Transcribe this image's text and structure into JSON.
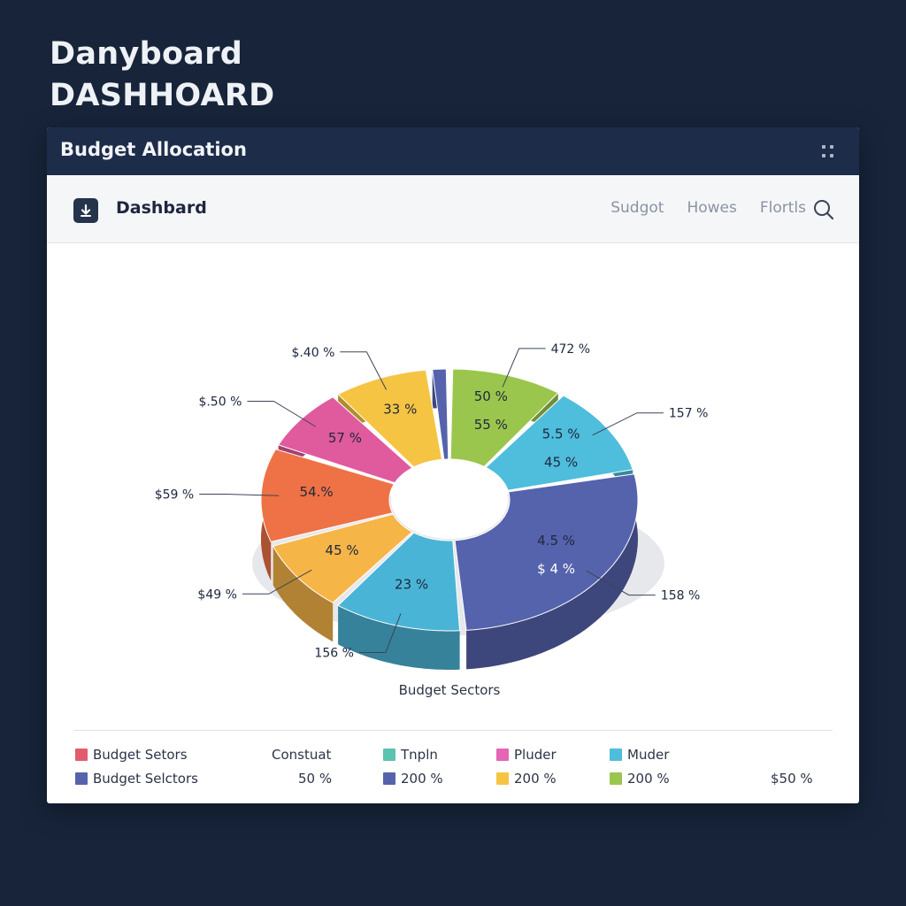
{
  "page": {
    "title_line1": "Danyboard",
    "title_line2": "DASHHOARD"
  },
  "card": {
    "title": "Budget Allocation"
  },
  "toolbar": {
    "title": "Dashbard",
    "nav": [
      "Sudgot",
      "Howes",
      "Flortls"
    ]
  },
  "legend": {
    "row1": [
      {
        "label": "Budget Setors",
        "color": "#e25c6f"
      },
      {
        "label": "Constuat",
        "color": null
      },
      {
        "label": "Tnpln",
        "color": "#5cc3b0"
      },
      {
        "label": "Pluder",
        "color": "#e466b4"
      },
      {
        "label": "Muder",
        "color": "#4fbddc"
      }
    ],
    "row2": [
      {
        "label": "Budget Selctors",
        "color": "#5563ac"
      },
      {
        "label": "50 %",
        "color": null
      },
      {
        "label": "200 %",
        "color": "#5563ac"
      },
      {
        "label": "200 %",
        "color": "#f5c443"
      },
      {
        "label": "200 %",
        "color": "#9bc64d"
      },
      {
        "label": "$50 %",
        "color": null
      }
    ]
  },
  "chart_data": {
    "type": "pie",
    "title": "",
    "xlabel": "Budget Sectors",
    "slices": [
      {
        "value": 35,
        "label": "50 %",
        "label2": "55 %",
        "outer": "472 %",
        "color": "#9bc64d"
      },
      {
        "value": 40,
        "label": "5.5 %",
        "label2": "45 %",
        "outer": "157 %",
        "color": "#4fbddc"
      },
      {
        "value": 95,
        "label": "4.5 %",
        "label2": "$ 4 %",
        "outer": "158 %",
        "color": "#5563ac"
      },
      {
        "value": 40,
        "label": "23 %",
        "label2": "",
        "outer": "156 %",
        "color": "#4ab4d6"
      },
      {
        "value": 32,
        "label": "45 %",
        "label2": "",
        "outer": "$49 %",
        "color": "#f6b547"
      },
      {
        "value": 42,
        "label": "54.%",
        "label2": "",
        "outer": "$59 %",
        "color": "#ee7245"
      },
      {
        "value": 28,
        "label": "57 %",
        "label2": "",
        "outer": "$.50 %",
        "color": "#e05a9e"
      },
      {
        "value": 30,
        "label": "33 %",
        "label2": "",
        "outer": "$.40 %",
        "color": "#f5c443"
      },
      {
        "value": 6,
        "label": "",
        "label2": "",
        "outer": "",
        "color": "#5563ac"
      }
    ]
  }
}
